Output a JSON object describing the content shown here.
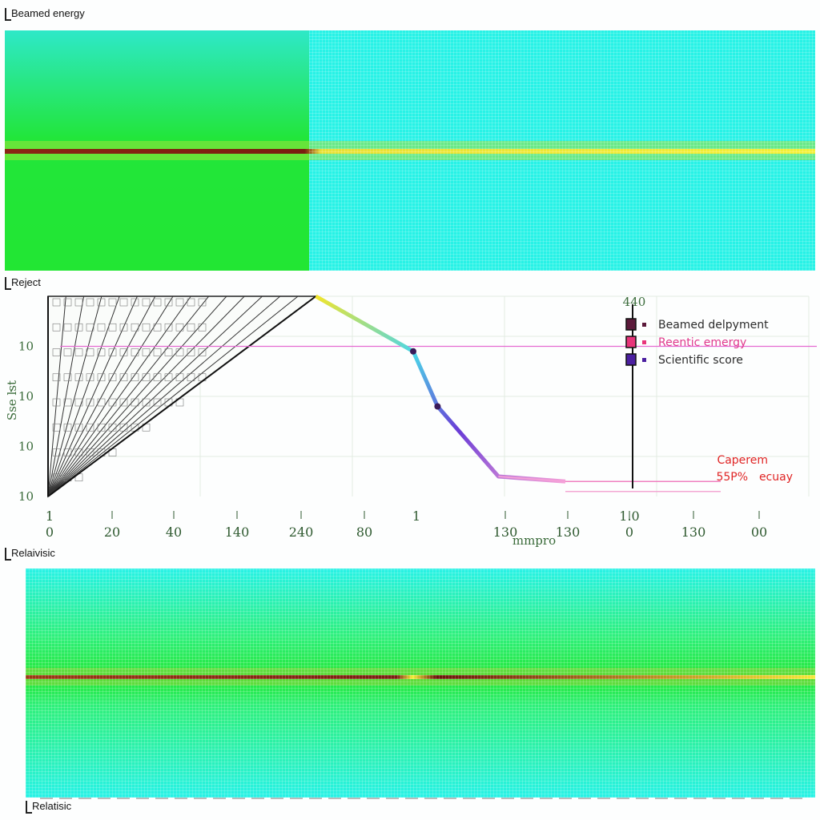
{
  "labels": {
    "top_panel": "Beamed energy",
    "middle_panel": "Reject",
    "bottom_panel_top": "Relaivisic",
    "bottom_panel_bottom": "Relatisic"
  },
  "colors": {
    "heat_green": "#22e633",
    "heat_cyan": "#27f2e6",
    "band_dark": "#7a1d10",
    "band_yellow": "#f4f035",
    "legend_1": "#5b1a3a",
    "legend_2": "#e8347a",
    "legend_3": "#4b1fa0",
    "hline": "#e56ad2",
    "annotation": "#e02525"
  },
  "chart_data": [
    {
      "type": "heatmap",
      "title": "Beamed energy",
      "description_regions": [
        "green-left",
        "cyan-right"
      ],
      "band": "horizontal"
    },
    {
      "type": "line",
      "title": "Reject",
      "xlabel": "mmpro",
      "ylabel": "Sse ŀst",
      "x_ticks": [
        "0",
        "20",
        "40",
        "140",
        "240",
        "80",
        "",
        "130",
        "130",
        "0",
        "130",
        "00"
      ],
      "x_ticks_upper": [
        "1",
        "",
        "",
        "",
        "",
        "",
        "1",
        "",
        "",
        "1.0",
        "",
        ""
      ],
      "y_ticks": [
        "10",
        "10",
        "10",
        "10"
      ],
      "vline_label": "440",
      "series": [
        {
          "name": "Beamed delpyment",
          "x": [
            0,
            88
          ],
          "y": [
            0,
            4
          ]
        },
        {
          "name": "Reentic emergy",
          "x": [
            88,
            120,
            128,
            148,
            170
          ],
          "y": [
            4,
            2.9,
            1.8,
            0.4,
            0.3
          ]
        },
        {
          "name": "Scientific score",
          "x": [
            148,
            170
          ],
          "y": [
            0.4,
            0.3
          ]
        }
      ],
      "annotations": [
        "Caperem",
        "55P%",
        "ecuay"
      ]
    },
    {
      "type": "heatmap",
      "title": "Relaivisic",
      "band": "horizontal"
    }
  ],
  "legend": [
    {
      "label": "Beamed delpyment",
      "color": "#5b1a3a",
      "text_color": "#2c2c2c"
    },
    {
      "label": "Reentic emergy",
      "color": "#e8347a",
      "text_color": "#e03a8c"
    },
    {
      "label": "Scientific score",
      "color": "#4b1fa0",
      "text_color": "#2c2c2c"
    }
  ]
}
